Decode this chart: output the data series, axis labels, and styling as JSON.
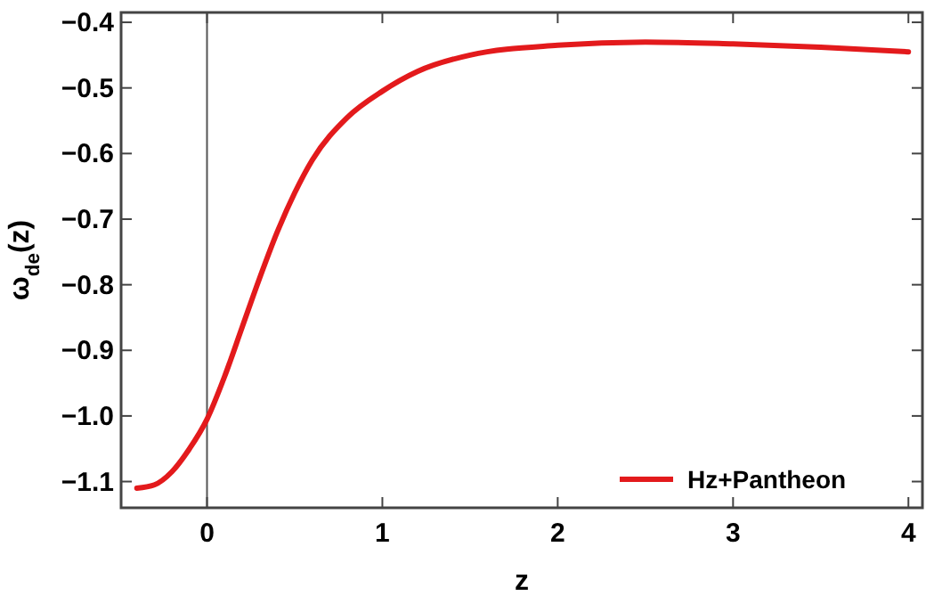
{
  "chart_data": {
    "type": "line",
    "xlabel": "z",
    "ylabel": "ω$_{de}$(z)",
    "xlim": [
      -0.49,
      4.08
    ],
    "ylim": [
      -1.14,
      -0.385
    ],
    "xticks": [
      0,
      1,
      2,
      3,
      4
    ],
    "yticks": [
      {
        "value": -1.1,
        "label": "−1.1"
      },
      {
        "value": -1.0,
        "label": "−1.0"
      },
      {
        "value": -0.9,
        "label": "−0.9"
      },
      {
        "value": -0.8,
        "label": "−0.8"
      },
      {
        "value": -0.7,
        "label": "−0.7"
      },
      {
        "value": -0.6,
        "label": "−0.6"
      },
      {
        "value": -0.5,
        "label": "−0.5"
      },
      {
        "value": -0.4,
        "label": "−0.4"
      }
    ],
    "x": [
      -0.4,
      -0.3,
      -0.2,
      -0.1,
      0,
      0.1,
      0.2,
      0.3,
      0.4,
      0.5,
      0.6,
      0.8,
      1.0,
      1.2,
      1.5,
      2.0,
      2.5,
      3.0,
      3.5,
      4.0
    ],
    "series": [
      {
        "name": "Hz+Pantheon",
        "color": "#e31a1c",
        "values": [
          -1.11,
          -1.105,
          -1.085,
          -1.05,
          -1.005,
          -0.94,
          -0.865,
          -0.79,
          -0.72,
          -0.66,
          -0.61,
          -0.545,
          -0.505,
          -0.475,
          -0.45,
          -0.435,
          -0.43,
          -0.433,
          -0.438,
          -0.445
        ]
      }
    ],
    "ref_lines": [
      {
        "axis": "x",
        "value": 0,
        "color": "#555555"
      }
    ],
    "legend": "bottom right",
    "grid": false,
    "marker": "none",
    "line_style": "solid"
  }
}
